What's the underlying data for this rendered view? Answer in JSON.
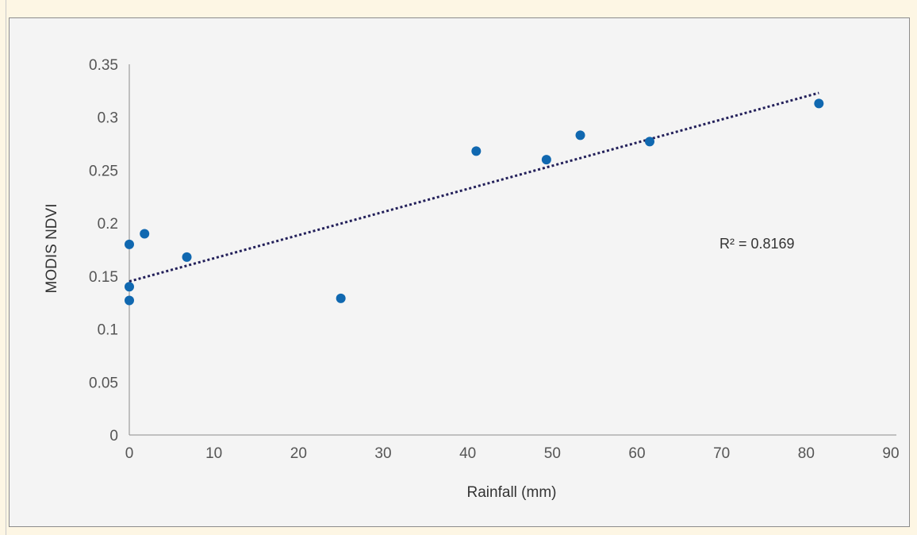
{
  "chart_data": {
    "type": "scatter",
    "xlabel": "Rainfall (mm)",
    "ylabel": "MODIS NDVI",
    "xlim": [
      0,
      90
    ],
    "ylim": [
      0,
      0.35
    ],
    "x_ticks": [
      "0",
      "10",
      "20",
      "30",
      "40",
      "50",
      "60",
      "70",
      "80",
      "90"
    ],
    "y_ticks": [
      "0",
      "0.05",
      "0.1",
      "0.15",
      "0.2",
      "0.25",
      "0.3",
      "0.35"
    ],
    "points": [
      {
        "x": 0,
        "y": 0.18
      },
      {
        "x": 0,
        "y": 0.14
      },
      {
        "x": 0,
        "y": 0.127
      },
      {
        "x": 1.8,
        "y": 0.19
      },
      {
        "x": 6.8,
        "y": 0.168
      },
      {
        "x": 25,
        "y": 0.129
      },
      {
        "x": 41,
        "y": 0.268
      },
      {
        "x": 49.3,
        "y": 0.26
      },
      {
        "x": 53.3,
        "y": 0.283
      },
      {
        "x": 61.5,
        "y": 0.277
      },
      {
        "x": 81.5,
        "y": 0.313
      }
    ],
    "trendline": {
      "type": "linear",
      "x": [
        0,
        81.5
      ],
      "y": [
        0.145,
        0.323
      ],
      "style": "dotted"
    },
    "annotation": "R² = 0.8169",
    "grid": false,
    "colors": {
      "points": "#1068b0",
      "trendline": "#23205a",
      "axis": "#8c8c8c"
    }
  }
}
